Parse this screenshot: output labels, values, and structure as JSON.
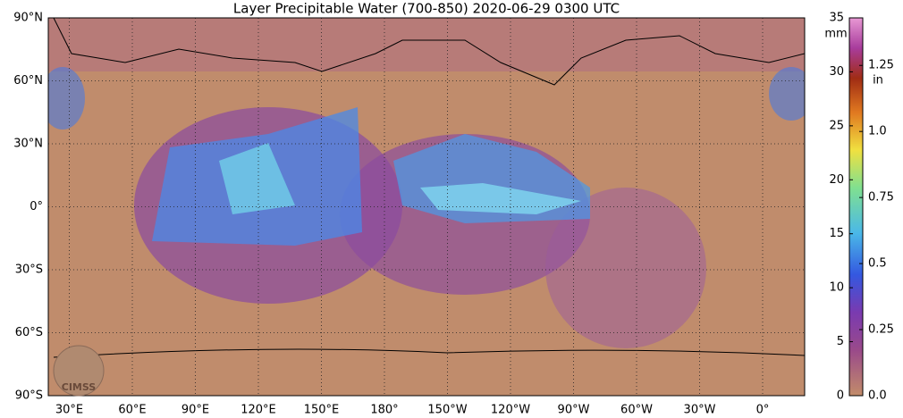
{
  "title": "Layer Precipitable Water (700-850)  2020-06-29 0300 UTC",
  "map": {
    "lon_range": [
      20,
      380
    ],
    "lat_range": [
      -90,
      90
    ],
    "lat_ticks": [
      {
        "value": 90,
        "label": "90°N"
      },
      {
        "value": 60,
        "label": "60°N"
      },
      {
        "value": 30,
        "label": "30°N"
      },
      {
        "value": 0,
        "label": "0°"
      },
      {
        "value": -30,
        "label": "30°S"
      },
      {
        "value": -60,
        "label": "60°S"
      },
      {
        "value": -90,
        "label": "90°S"
      }
    ],
    "lon_ticks": [
      {
        "value": 30,
        "label": "30°E"
      },
      {
        "value": 60,
        "label": "60°E"
      },
      {
        "value": 90,
        "label": "90°E"
      },
      {
        "value": 120,
        "label": "120°E"
      },
      {
        "value": 150,
        "label": "150°E"
      },
      {
        "value": 180,
        "label": "180°"
      },
      {
        "value": 210,
        "label": "150°W"
      },
      {
        "value": 240,
        "label": "120°W"
      },
      {
        "value": 270,
        "label": "90°W"
      },
      {
        "value": 300,
        "label": "60°W"
      },
      {
        "value": 330,
        "label": "30°W"
      },
      {
        "value": 360,
        "label": "0°"
      }
    ],
    "logo": "CIMSS"
  },
  "colorbar": {
    "unit": "mm",
    "ylim": [
      0,
      35
    ],
    "yticks": [
      0,
      5,
      10,
      15,
      20,
      25,
      30,
      35
    ],
    "unit2": "in",
    "y2lim": [
      0,
      1.43
    ],
    "y2ticks": [
      {
        "value": 0,
        "label": "0.0"
      },
      0.25,
      0.5,
      0.75,
      {
        "value": 1,
        "label": "1.0"
      },
      1.25
    ]
  }
}
